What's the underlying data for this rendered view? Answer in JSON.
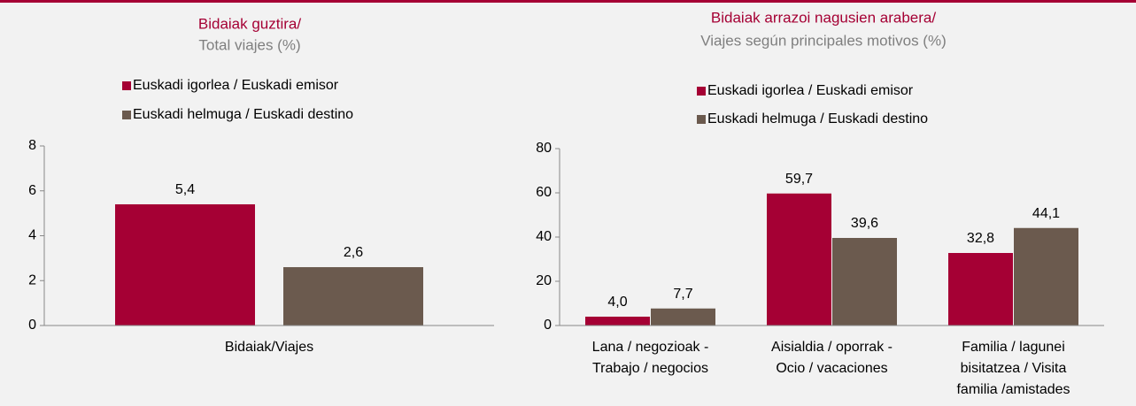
{
  "chart_data": [
    {
      "type": "bar",
      "title": "Bidaiak guztira/",
      "subtitle": "Total viajes (%)",
      "categories": [
        [
          "Bidaiak/Viajes"
        ]
      ],
      "series": [
        {
          "name": "Euskadi igorlea / Euskadi emisor",
          "color": "#a50034",
          "values": [
            5.4
          ],
          "value_labels": [
            "5,4"
          ]
        },
        {
          "name": "Euskadi helmuga / Euskadi destino",
          "color": "#6b5a4e",
          "values": [
            2.6
          ],
          "value_labels": [
            "2,6"
          ]
        }
      ],
      "ylim": [
        0,
        8
      ],
      "yticks": [
        0,
        2,
        4,
        6,
        8
      ]
    },
    {
      "type": "bar",
      "title": "Bidaiak arrazoi nagusien arabera/",
      "subtitle": "Viajes según principales motivos (%)",
      "categories": [
        [
          "Lana / negozioak -",
          "Trabajo / negocios"
        ],
        [
          "Aisialdia / oporrak -",
          "Ocio / vacaciones"
        ],
        [
          "Familia / lagunei",
          "bisitatzea / Visita",
          "familia /amistades"
        ]
      ],
      "series": [
        {
          "name": "Euskadi igorlea / Euskadi emisor",
          "color": "#a50034",
          "values": [
            4.0,
            59.7,
            32.8
          ],
          "value_labels": [
            "4,0",
            "59,7",
            "32,8"
          ]
        },
        {
          "name": "Euskadi helmuga / Euskadi destino",
          "color": "#6b5a4e",
          "values": [
            7.7,
            39.6,
            44.1
          ],
          "value_labels": [
            "7,7",
            "39,6",
            "44,1"
          ]
        }
      ],
      "ylim": [
        0,
        80
      ],
      "yticks": [
        0,
        20,
        40,
        60,
        80
      ]
    }
  ]
}
